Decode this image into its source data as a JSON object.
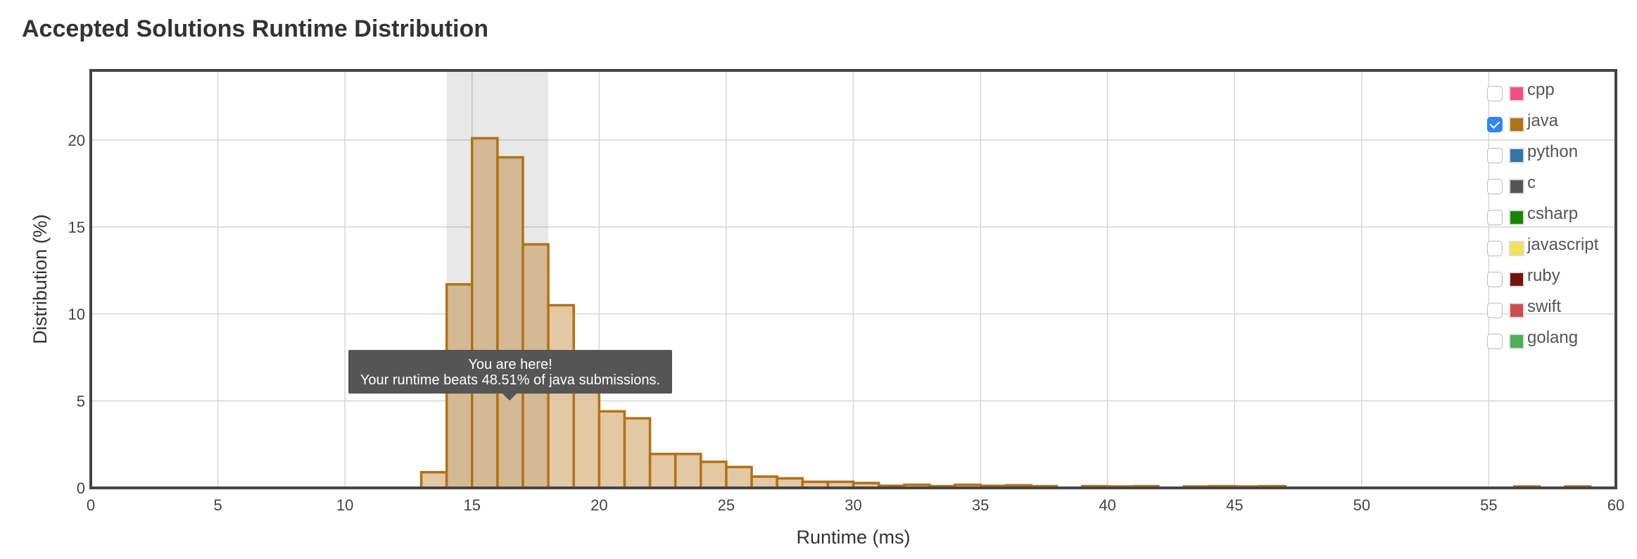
{
  "page": {
    "title": "Accepted Solutions Runtime Distribution"
  },
  "tooltip": {
    "line1": "You are here!",
    "line2": "Your runtime beats 48.51% of java submissions."
  },
  "legend": {
    "items": [
      {
        "label": "cpp",
        "color": "#f24f81",
        "checked": false
      },
      {
        "label": "java",
        "color": "#b07219",
        "checked": true
      },
      {
        "label": "python",
        "color": "#3572a5",
        "checked": false
      },
      {
        "label": "c",
        "color": "#555555",
        "checked": false
      },
      {
        "label": "csharp",
        "color": "#178600",
        "checked": false
      },
      {
        "label": "javascript",
        "color": "#f1e05a",
        "checked": false
      },
      {
        "label": "ruby",
        "color": "#701516",
        "checked": false
      },
      {
        "label": "swift",
        "color": "#cd4e4f",
        "checked": false
      },
      {
        "label": "golang",
        "color": "#4ead5b",
        "checked": false
      }
    ]
  },
  "chart_data": {
    "type": "bar",
    "title": "",
    "xlabel": "Runtime (ms)",
    "ylabel": "Distribution (%)",
    "xlim": [
      0,
      60
    ],
    "ylim": [
      0,
      24
    ],
    "xticks": [
      0,
      5,
      10,
      15,
      20,
      25,
      30,
      35,
      40,
      45,
      50,
      55,
      60
    ],
    "yticks": [
      0,
      5,
      10,
      15,
      20
    ],
    "grid": true,
    "highlight_range": [
      14,
      18
    ],
    "bin_width": 1,
    "series": [
      {
        "name": "java",
        "color": "#b07219",
        "bins": [
          {
            "x": 13,
            "y": 0.9
          },
          {
            "x": 14,
            "y": 11.7
          },
          {
            "x": 15,
            "y": 20.1
          },
          {
            "x": 16,
            "y": 19.0
          },
          {
            "x": 17,
            "y": 14.0
          },
          {
            "x": 18,
            "y": 10.5
          },
          {
            "x": 19,
            "y": 6.5
          },
          {
            "x": 20,
            "y": 4.4
          },
          {
            "x": 21,
            "y": 4.0
          },
          {
            "x": 22,
            "y": 1.95
          },
          {
            "x": 23,
            "y": 1.95
          },
          {
            "x": 24,
            "y": 1.5
          },
          {
            "x": 25,
            "y": 1.2
          },
          {
            "x": 26,
            "y": 0.65
          },
          {
            "x": 27,
            "y": 0.55
          },
          {
            "x": 28,
            "y": 0.35
          },
          {
            "x": 29,
            "y": 0.35
          },
          {
            "x": 30,
            "y": 0.28
          },
          {
            "x": 31,
            "y": 0.12
          },
          {
            "x": 32,
            "y": 0.18
          },
          {
            "x": 33,
            "y": 0.1
          },
          {
            "x": 34,
            "y": 0.18
          },
          {
            "x": 35,
            "y": 0.12
          },
          {
            "x": 36,
            "y": 0.15
          },
          {
            "x": 37,
            "y": 0.1
          },
          {
            "x": 39,
            "y": 0.1
          },
          {
            "x": 40,
            "y": 0.08
          },
          {
            "x": 41,
            "y": 0.1
          },
          {
            "x": 43,
            "y": 0.08
          },
          {
            "x": 44,
            "y": 0.1
          },
          {
            "x": 45,
            "y": 0.08
          },
          {
            "x": 46,
            "y": 0.1
          },
          {
            "x": 56,
            "y": 0.08
          },
          {
            "x": 58,
            "y": 0.08
          }
        ]
      }
    ]
  }
}
